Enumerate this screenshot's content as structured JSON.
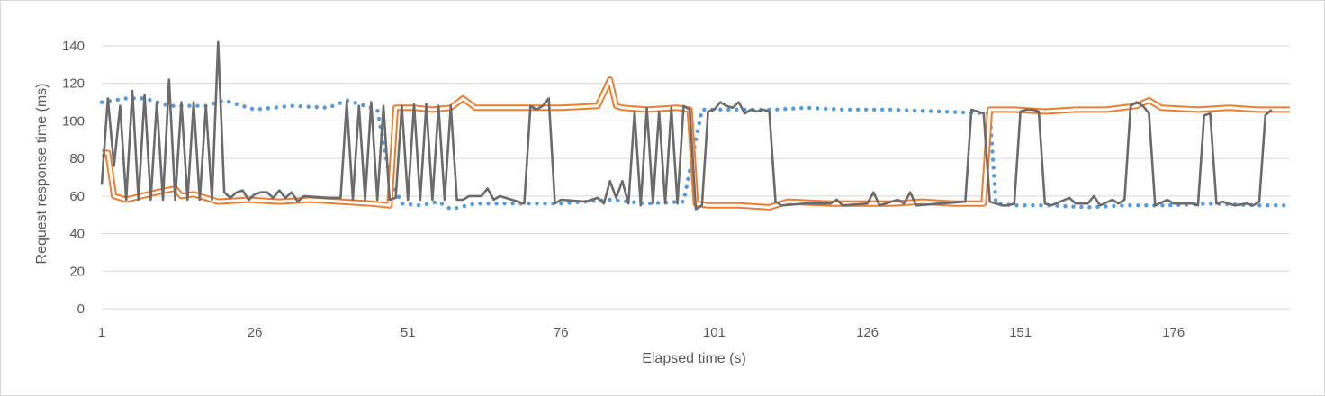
{
  "chart_data": {
    "type": "line",
    "xlabel": "Elapsed time (s)",
    "ylabel": "Request response time (ms)",
    "xlim": [
      1,
      195
    ],
    "ylim": [
      0,
      140
    ],
    "x_ticks": [
      1,
      26,
      51,
      76,
      101,
      126,
      151,
      176
    ],
    "y_ticks": [
      0,
      20,
      40,
      60,
      80,
      100,
      120,
      140
    ],
    "grid": "horizontal",
    "legend": "none",
    "colors": {
      "blue": "#5b9bd5",
      "orange": "#ed7d31",
      "gray": "#6b6b6b",
      "grid": "#d9d9d9"
    },
    "series": [
      {
        "style": "dotted",
        "color": "#5b9bd5",
        "points": [
          [
            1,
            110
          ],
          [
            5,
            112
          ],
          [
            8,
            112
          ],
          [
            12,
            108
          ],
          [
            18,
            108
          ],
          [
            21,
            111
          ],
          [
            26,
            106
          ],
          [
            32,
            108
          ],
          [
            38,
            107
          ],
          [
            41,
            111
          ],
          [
            46,
            106
          ],
          [
            48,
            70
          ],
          [
            50,
            56
          ],
          [
            53,
            55
          ],
          [
            56,
            57
          ],
          [
            58,
            53
          ],
          [
            62,
            56
          ],
          [
            70,
            56
          ],
          [
            76,
            56
          ],
          [
            84,
            58
          ],
          [
            90,
            56
          ],
          [
            96,
            57
          ],
          [
            99,
            106
          ],
          [
            101,
            106
          ],
          [
            106,
            106
          ],
          [
            111,
            106
          ],
          [
            116,
            107
          ],
          [
            122,
            106
          ],
          [
            130,
            106
          ],
          [
            138,
            105
          ],
          [
            146,
            104
          ],
          [
            147,
            56
          ],
          [
            150,
            55
          ],
          [
            156,
            55
          ],
          [
            162,
            54
          ],
          [
            168,
            55
          ],
          [
            175,
            55
          ],
          [
            182,
            56
          ],
          [
            190,
            55
          ],
          [
            195,
            55
          ]
        ]
      },
      {
        "style": "double-line",
        "color": "#ed7d31",
        "points": [
          [
            1,
            83
          ],
          [
            2,
            83
          ],
          [
            3,
            60
          ],
          [
            5,
            58
          ],
          [
            10,
            62
          ],
          [
            13,
            64
          ],
          [
            14,
            60
          ],
          [
            16,
            61
          ],
          [
            20,
            57
          ],
          [
            25,
            58
          ],
          [
            30,
            57
          ],
          [
            35,
            58
          ],
          [
            40,
            57
          ],
          [
            45,
            56
          ],
          [
            48,
            55
          ],
          [
            49,
            107
          ],
          [
            52,
            107
          ],
          [
            55,
            106
          ],
          [
            58,
            107
          ],
          [
            60,
            112
          ],
          [
            62,
            107
          ],
          [
            68,
            107
          ],
          [
            72,
            107
          ],
          [
            76,
            107
          ],
          [
            82,
            108
          ],
          [
            84,
            122
          ],
          [
            85,
            108
          ],
          [
            86,
            107
          ],
          [
            90,
            106
          ],
          [
            95,
            107
          ],
          [
            97,
            106
          ],
          [
            98,
            56
          ],
          [
            100,
            55
          ],
          [
            105,
            55
          ],
          [
            110,
            54
          ],
          [
            113,
            57
          ],
          [
            120,
            56
          ],
          [
            125,
            56
          ],
          [
            130,
            56
          ],
          [
            135,
            57
          ],
          [
            140,
            56
          ],
          [
            145,
            56
          ],
          [
            146,
            106
          ],
          [
            150,
            106
          ],
          [
            155,
            105
          ],
          [
            160,
            106
          ],
          [
            165,
            106
          ],
          [
            170,
            108
          ],
          [
            172,
            111
          ],
          [
            174,
            107
          ],
          [
            180,
            106
          ],
          [
            185,
            107
          ],
          [
            190,
            106
          ],
          [
            195,
            106
          ]
        ]
      },
      {
        "style": "solid",
        "color": "#6b6b6b",
        "points": [
          [
            1,
            66
          ],
          [
            2,
            112
          ],
          [
            3,
            76
          ],
          [
            4,
            108
          ],
          [
            5,
            58
          ],
          [
            6,
            116
          ],
          [
            7,
            58
          ],
          [
            8,
            114
          ],
          [
            9,
            58
          ],
          [
            10,
            110
          ],
          [
            11,
            58
          ],
          [
            12,
            122
          ],
          [
            13,
            58
          ],
          [
            14,
            110
          ],
          [
            15,
            58
          ],
          [
            16,
            110
          ],
          [
            17,
            58
          ],
          [
            18,
            108
          ],
          [
            19,
            58
          ],
          [
            20,
            142
          ],
          [
            21,
            62
          ],
          [
            22,
            59
          ],
          [
            23,
            62
          ],
          [
            24,
            63
          ],
          [
            25,
            58
          ],
          [
            26,
            61
          ],
          [
            27,
            62
          ],
          [
            28,
            62
          ],
          [
            29,
            59
          ],
          [
            30,
            63
          ],
          [
            31,
            59
          ],
          [
            32,
            62
          ],
          [
            33,
            57
          ],
          [
            34,
            60
          ],
          [
            38,
            59
          ],
          [
            40,
            59
          ],
          [
            41,
            110
          ],
          [
            42,
            58
          ],
          [
            43,
            108
          ],
          [
            44,
            58
          ],
          [
            45,
            110
          ],
          [
            46,
            58
          ],
          [
            47,
            108
          ],
          [
            48,
            58
          ],
          [
            49,
            59
          ],
          [
            50,
            108
          ],
          [
            51,
            58
          ],
          [
            52,
            109
          ],
          [
            53,
            58
          ],
          [
            54,
            109
          ],
          [
            55,
            58
          ],
          [
            56,
            108
          ],
          [
            57,
            58
          ],
          [
            58,
            108
          ],
          [
            59,
            58
          ],
          [
            60,
            58
          ],
          [
            61,
            60
          ],
          [
            62,
            60
          ],
          [
            63,
            60
          ],
          [
            64,
            64
          ],
          [
            65,
            58
          ],
          [
            66,
            60
          ],
          [
            70,
            56
          ],
          [
            71,
            108
          ],
          [
            72,
            106
          ],
          [
            73,
            108
          ],
          [
            74,
            112
          ],
          [
            75,
            56
          ],
          [
            76,
            58
          ],
          [
            80,
            57
          ],
          [
            82,
            59
          ],
          [
            83,
            56
          ],
          [
            84,
            68
          ],
          [
            85,
            59
          ],
          [
            86,
            68
          ],
          [
            87,
            56
          ],
          [
            88,
            105
          ],
          [
            89,
            55
          ],
          [
            90,
            107
          ],
          [
            91,
            56
          ],
          [
            92,
            105
          ],
          [
            93,
            56
          ],
          [
            94,
            107
          ],
          [
            95,
            56
          ],
          [
            96,
            108
          ],
          [
            97,
            106
          ],
          [
            98,
            53
          ],
          [
            99,
            55
          ],
          [
            100,
            105
          ],
          [
            101,
            106
          ],
          [
            102,
            110
          ],
          [
            103,
            108
          ],
          [
            104,
            107
          ],
          [
            105,
            110
          ],
          [
            106,
            104
          ],
          [
            107,
            106
          ],
          [
            108,
            105
          ],
          [
            109,
            106
          ],
          [
            110,
            105
          ],
          [
            111,
            57
          ],
          [
            112,
            55
          ],
          [
            116,
            56
          ],
          [
            120,
            56
          ],
          [
            121,
            58
          ],
          [
            122,
            55
          ],
          [
            126,
            56
          ],
          [
            127,
            62
          ],
          [
            128,
            55
          ],
          [
            131,
            58
          ],
          [
            132,
            56
          ],
          [
            133,
            62
          ],
          [
            134,
            55
          ],
          [
            138,
            56
          ],
          [
            142,
            57
          ],
          [
            143,
            106
          ],
          [
            145,
            104
          ],
          [
            146,
            57
          ],
          [
            147,
            56
          ],
          [
            148,
            55
          ],
          [
            149,
            55
          ],
          [
            150,
            56
          ],
          [
            151,
            105
          ],
          [
            152,
            106
          ],
          [
            153,
            106
          ],
          [
            154,
            105
          ],
          [
            155,
            56
          ],
          [
            156,
            55
          ],
          [
            159,
            59
          ],
          [
            160,
            56
          ],
          [
            162,
            56
          ],
          [
            163,
            60
          ],
          [
            164,
            55
          ],
          [
            166,
            58
          ],
          [
            167,
            56
          ],
          [
            168,
            58
          ],
          [
            169,
            108
          ],
          [
            170,
            110
          ],
          [
            171,
            108
          ],
          [
            172,
            104
          ],
          [
            173,
            55
          ],
          [
            175,
            58
          ],
          [
            176,
            56
          ],
          [
            179,
            56
          ],
          [
            180,
            55
          ],
          [
            181,
            103
          ],
          [
            182,
            104
          ],
          [
            183,
            56
          ],
          [
            184,
            57
          ],
          [
            186,
            55
          ],
          [
            188,
            56
          ],
          [
            189,
            55
          ],
          [
            190,
            57
          ],
          [
            191,
            103
          ],
          [
            192,
            106
          ]
        ]
      }
    ]
  }
}
